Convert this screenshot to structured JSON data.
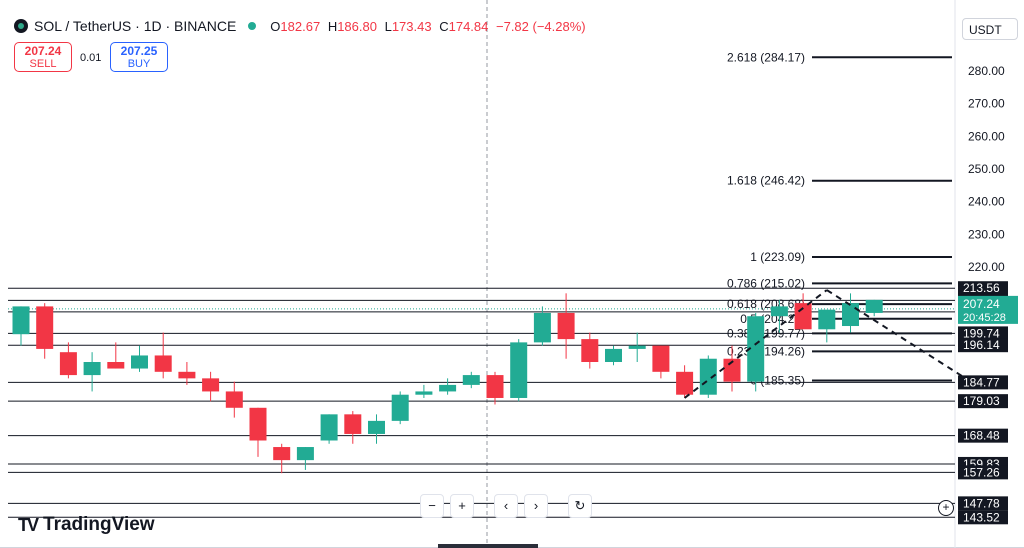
{
  "header": {
    "symbol": "SOL / TetherUS · 1D · BINANCE",
    "o_label": "O",
    "o": "182.67",
    "h_label": "H",
    "h": "186.80",
    "l_label": "L",
    "l": "173.43",
    "c_label": "C",
    "c": "174.84",
    "change": "−7.82 (−4.28%)"
  },
  "trade": {
    "sell_price": "207.24",
    "sell_label": "SELL",
    "spread": "0.01",
    "buy_price": "207.25",
    "buy_label": "BUY"
  },
  "currency": "USDT",
  "brand": "TradingView",
  "nav": {
    "zoom_out": "−",
    "zoom_in": "+",
    "prev": "‹",
    "next": "›",
    "reset": "↻"
  },
  "colors": {
    "up": "#22ab94",
    "down": "#f23645",
    "axis_text": "#131722"
  },
  "chart_data": {
    "type": "candlestick",
    "ylim": [
      143.0,
      287.0
    ],
    "y_ticks": [
      280,
      270,
      260,
      250,
      240,
      230,
      220
    ],
    "candles": [
      {
        "o": 199.5,
        "h": 208,
        "l": 196,
        "c": 208
      },
      {
        "o": 208,
        "h": 209,
        "l": 192,
        "c": 195
      },
      {
        "o": 194,
        "h": 197,
        "l": 186,
        "c": 187
      },
      {
        "o": 187,
        "h": 194,
        "l": 182,
        "c": 191
      },
      {
        "o": 191,
        "h": 197,
        "l": 189,
        "c": 189
      },
      {
        "o": 189,
        "h": 196,
        "l": 188,
        "c": 193
      },
      {
        "o": 193,
        "h": 200,
        "l": 186,
        "c": 188
      },
      {
        "o": 188,
        "h": 191,
        "l": 184,
        "c": 186
      },
      {
        "o": 186,
        "h": 188,
        "l": 179,
        "c": 182
      },
      {
        "o": 182,
        "h": 185,
        "l": 174,
        "c": 177
      },
      {
        "o": 177,
        "h": 177,
        "l": 162,
        "c": 167
      },
      {
        "o": 165,
        "h": 166,
        "l": 157,
        "c": 161
      },
      {
        "o": 161,
        "h": 165,
        "l": 158,
        "c": 165
      },
      {
        "o": 167,
        "h": 175,
        "l": 166,
        "c": 175
      },
      {
        "o": 175,
        "h": 176,
        "l": 166,
        "c": 169
      },
      {
        "o": 169,
        "h": 175,
        "l": 166,
        "c": 173
      },
      {
        "o": 173,
        "h": 182,
        "l": 172,
        "c": 181
      },
      {
        "o": 181,
        "h": 184,
        "l": 180,
        "c": 182
      },
      {
        "o": 182,
        "h": 186,
        "l": 181,
        "c": 184
      },
      {
        "o": 184,
        "h": 188,
        "l": 183,
        "c": 187
      },
      {
        "o": 187,
        "h": 188,
        "l": 178,
        "c": 180
      },
      {
        "o": 180,
        "h": 198,
        "l": 179,
        "c": 197
      },
      {
        "o": 197,
        "h": 208,
        "l": 196,
        "c": 206
      },
      {
        "o": 206,
        "h": 212,
        "l": 192,
        "c": 198
      },
      {
        "o": 198,
        "h": 200,
        "l": 189,
        "c": 191
      },
      {
        "o": 191,
        "h": 196,
        "l": 190,
        "c": 195
      },
      {
        "o": 195,
        "h": 200,
        "l": 191,
        "c": 196
      },
      {
        "o": 196,
        "h": 196,
        "l": 186,
        "c": 188
      },
      {
        "o": 188,
        "h": 190,
        "l": 180,
        "c": 181
      },
      {
        "o": 181,
        "h": 193,
        "l": 180,
        "c": 192
      },
      {
        "o": 192,
        "h": 196,
        "l": 182,
        "c": 185
      },
      {
        "o": 185,
        "h": 206,
        "l": 182,
        "c": 205
      },
      {
        "o": 205,
        "h": 210,
        "l": 200,
        "c": 208
      },
      {
        "o": 209,
        "h": 212,
        "l": 202,
        "c": 201
      },
      {
        "o": 201,
        "h": 206,
        "l": 197,
        "c": 207
      },
      {
        "o": 202,
        "h": 212,
        "l": 200,
        "c": 209
      },
      {
        "o": 206,
        "h": 210,
        "l": 205,
        "c": 210
      }
    ],
    "fib_levels": [
      {
        "label": "2.618 (284.17)",
        "value": 284.17
      },
      {
        "label": "1.618 (246.42)",
        "value": 246.42
      },
      {
        "label": "1 (223.09)",
        "value": 223.09
      },
      {
        "label": "0.786 (215.02)",
        "value": 215.02
      },
      {
        "label": "0.618 (208.68)",
        "value": 208.68
      },
      {
        "label": "0.5 (204.22)",
        "value": 204.22
      },
      {
        "label": "0.382 (199.77)",
        "value": 199.77
      },
      {
        "label": "0.236 (194.26)",
        "value": 194.26
      },
      {
        "label": "0 (185.35)",
        "value": 185.35
      }
    ],
    "hlines": [
      213.56,
      209.84,
      206.33,
      199.74,
      196.14,
      184.77,
      179.03,
      168.48,
      159.83,
      157.26,
      147.78,
      143.52
    ],
    "price_labels": [
      {
        "text": "213.56",
        "value": 213.56
      },
      {
        "text": "209.84",
        "value": 209.84
      },
      {
        "text": "206.33",
        "value": 206.33
      },
      {
        "text": "199.74",
        "value": 199.74
      },
      {
        "text": "196.14",
        "value": 196.14
      },
      {
        "text": "184.77",
        "value": 184.77
      },
      {
        "text": "179.03",
        "value": 179.03
      },
      {
        "text": "168.48",
        "value": 168.48
      },
      {
        "text": "159.83",
        "value": 159.83
      },
      {
        "text": "157.26",
        "value": 157.26
      },
      {
        "text": "147.78",
        "value": 147.78
      },
      {
        "text": "143.52",
        "value": 143.52
      }
    ],
    "current_price": {
      "price": "207.24",
      "timer": "20:45:28",
      "value": 207.24
    },
    "trend_up": {
      "from": {
        "index": 28,
        "value": 180
      },
      "to": {
        "index": 34,
        "value": 213
      }
    },
    "trend_down": {
      "from": {
        "index": 34,
        "value": 213
      },
      "to": {
        "index": 40,
        "value": 185.35
      }
    }
  }
}
